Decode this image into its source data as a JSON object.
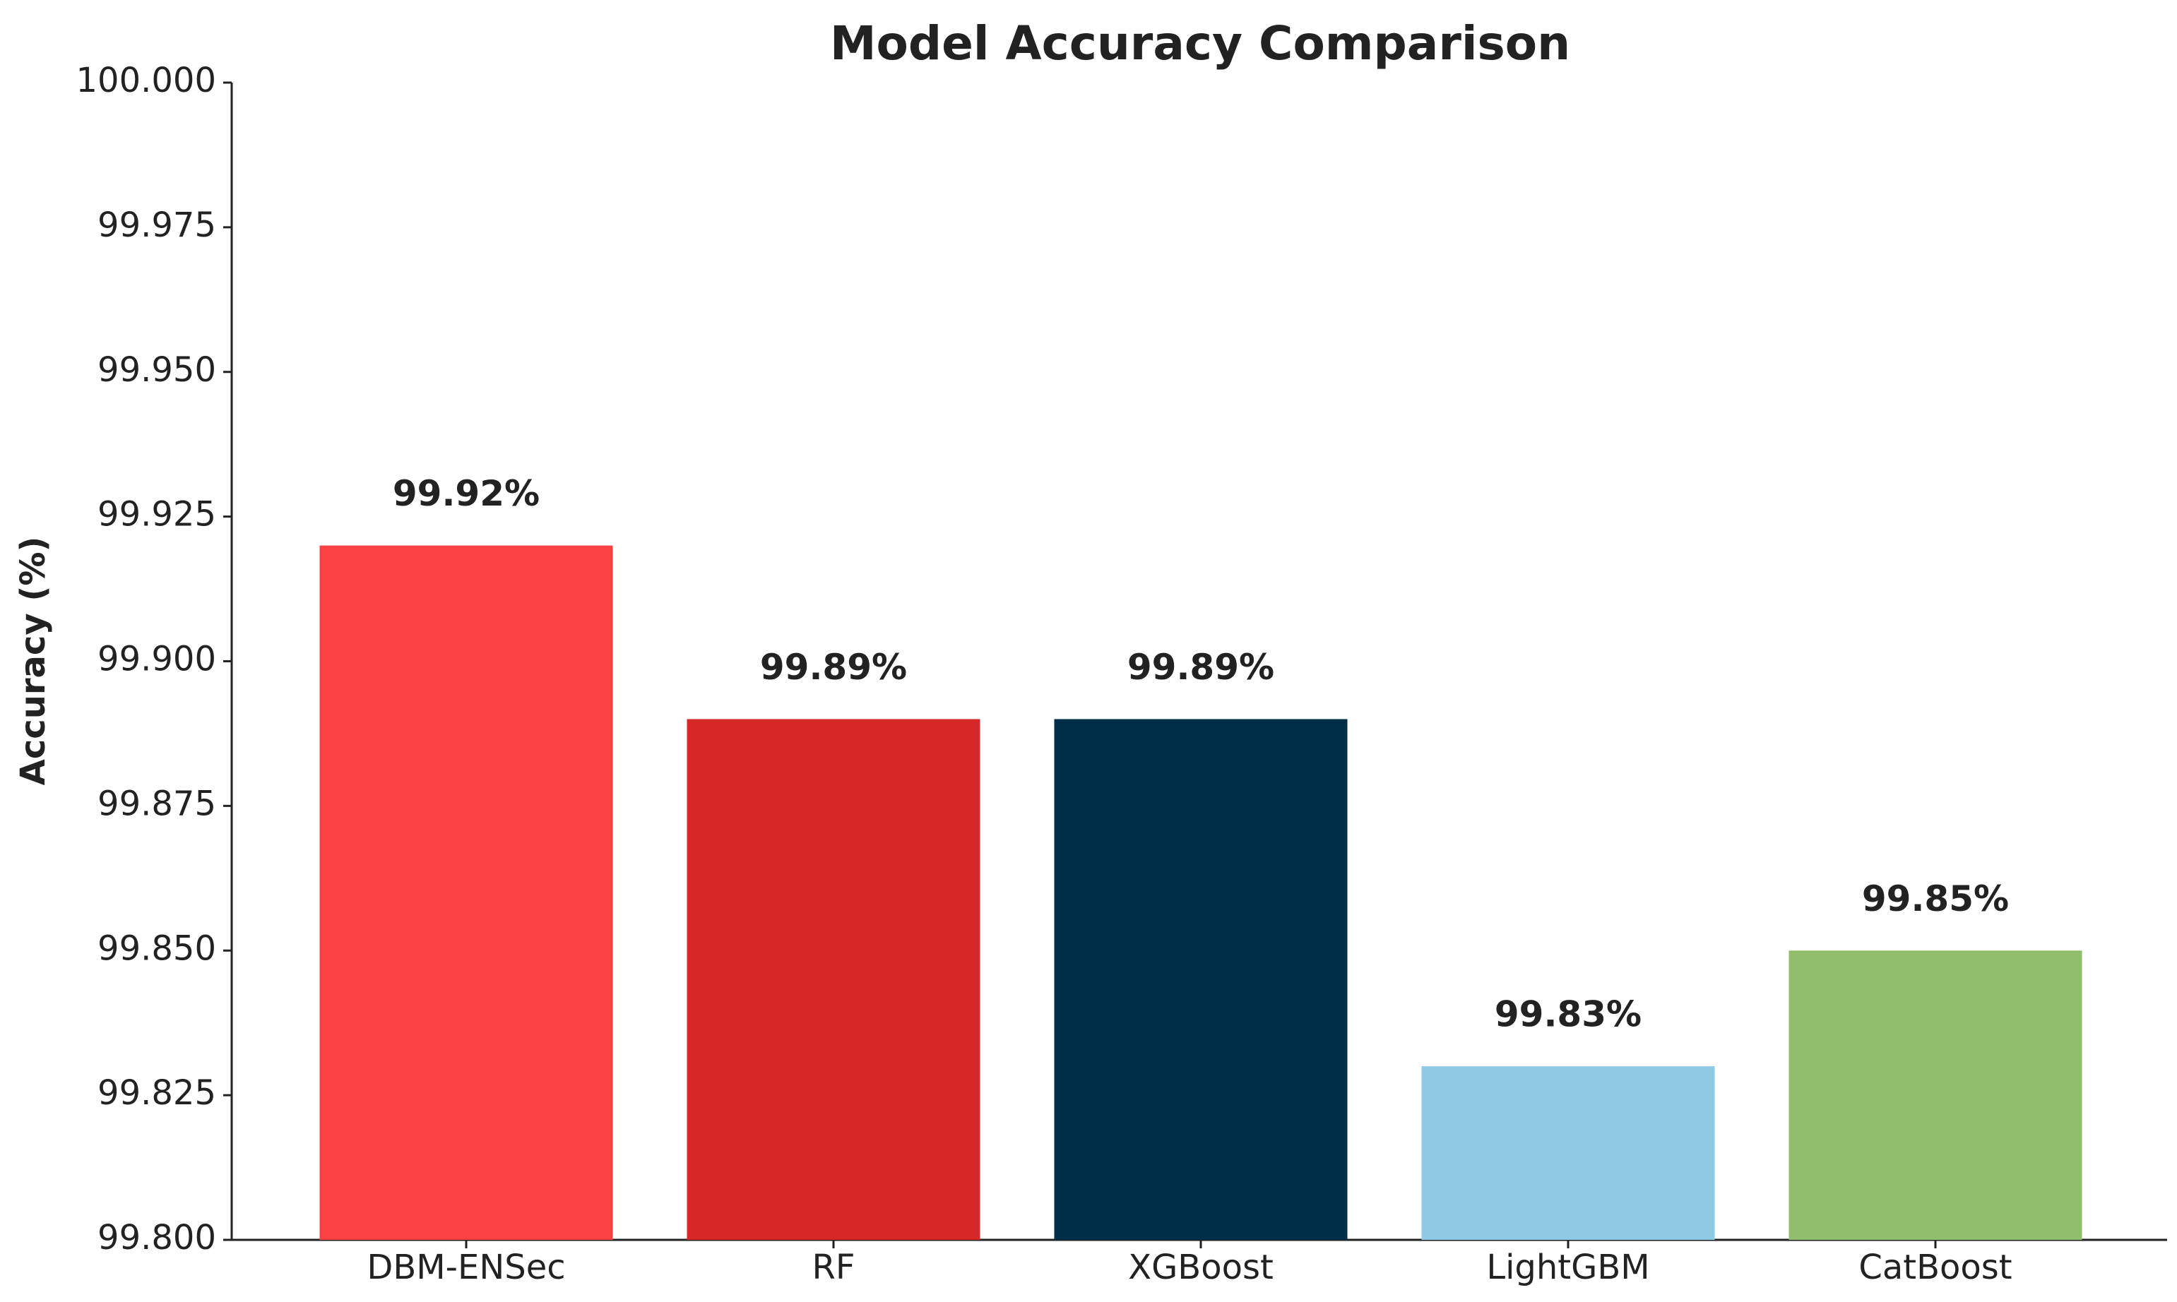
{
  "chart_data": {
    "type": "bar",
    "title": "Model Accuracy Comparison",
    "y_label": "Accuracy (%)",
    "categories": [
      "DBM-ENSec",
      "RF",
      "XGBoost",
      "LightGBM",
      "CatBoost"
    ],
    "values": [
      99.92,
      99.89,
      99.89,
      99.83,
      99.85
    ],
    "value_labels": [
      "99.92%",
      "99.89%",
      "99.89%",
      "99.83%",
      "99.85%"
    ],
    "colors": [
      "#f94144",
      "#d62828",
      "#003049",
      "#8ecae6",
      "#90be6d"
    ],
    "ylim": [
      99.8,
      100.0
    ],
    "yticks": [
      {
        "value": 99.8,
        "label": "99.800"
      },
      99.825,
      {
        "value": 99.85,
        "label": "99.850"
      },
      99.875,
      {
        "value": 99.9,
        "label": "99.900"
      },
      99.925,
      {
        "value": 99.95,
        "label": "99.950"
      },
      99.975,
      {
        "value": 100.0,
        "label": "100.000"
      }
    ],
    "grid": false
  }
}
